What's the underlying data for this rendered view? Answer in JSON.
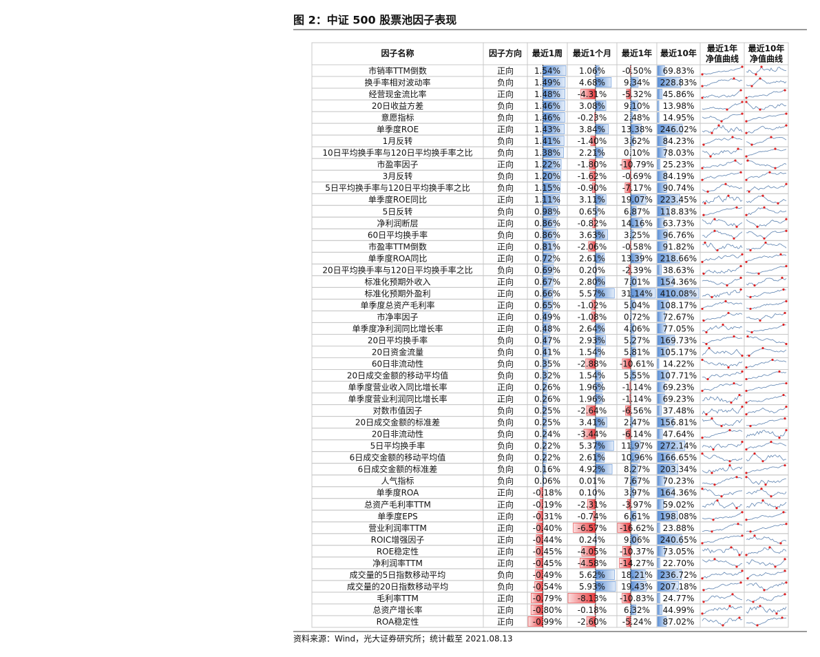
{
  "title": "图 2：中证 500 股票池因子表现",
  "source": "资料来源：Wind，光大证券研究所；统计截至 2021.08.13",
  "table": {
    "header": [
      "因子名称",
      "因子方向",
      "最近1周",
      "最近1个月",
      "最近1年",
      "最近10年",
      [
        "最近1年",
        "净值曲线"
      ],
      [
        "最近10年",
        "净值曲线"
      ]
    ],
    "rows": [
      [
        "市销率TTM倒数",
        "正向",
        "1.54%",
        "1.06%",
        "-0.50%",
        "69.83%"
      ],
      [
        "换手率相对波动率",
        "负向",
        "1.49%",
        "4.68%",
        "9.34%",
        "228.83%"
      ],
      [
        "经营现金流比率",
        "正向",
        "1.48%",
        "-4.31%",
        "-5.32%",
        "45.86%"
      ],
      [
        "20日收益方差",
        "负向",
        "1.46%",
        "3.08%",
        "9.10%",
        "13.98%"
      ],
      [
        "意愿指标",
        "负向",
        "1.46%",
        "-0.23%",
        "2.48%",
        "14.95%"
      ],
      [
        "单季度ROE",
        "正向",
        "1.43%",
        "3.84%",
        "13.38%",
        "246.02%"
      ],
      [
        "1月反转",
        "负向",
        "1.41%",
        "-1.40%",
        "3.62%",
        "84.23%"
      ],
      [
        "10日平均换手率与120日平均换手率之比",
        "负向",
        "1.38%",
        "2.21%",
        "0.10%",
        "78.03%"
      ],
      [
        "市盈率因子",
        "正向",
        "1.22%",
        "-1.80%",
        "-10.79%",
        "25.23%"
      ],
      [
        "3月反转",
        "负向",
        "1.20%",
        "-1.62%",
        "-0.69%",
        "84.19%"
      ],
      [
        "5日平均换手率与120日平均换手率之比",
        "负向",
        "1.15%",
        "-0.90%",
        "-7.17%",
        "90.74%"
      ],
      [
        "单季度ROE同比",
        "正向",
        "1.11%",
        "3.11%",
        "19.07%",
        "223.45%"
      ],
      [
        "5日反转",
        "负向",
        "0.98%",
        "0.65%",
        "6.87%",
        "118.83%"
      ],
      [
        "净利润断层",
        "正向",
        "0.86%",
        "-0.82%",
        "14.16%",
        "63.73%"
      ],
      [
        "60日平均换手率",
        "负向",
        "0.86%",
        "3.63%",
        "3.25%",
        "96.76%"
      ],
      [
        "市盈率TTM倒数",
        "正向",
        "0.81%",
        "-2.06%",
        "-0.58%",
        "91.82%"
      ],
      [
        "单季度ROA同比",
        "正向",
        "0.72%",
        "2.61%",
        "13.39%",
        "218.66%"
      ],
      [
        "20日平均换手率与120日平均换手率之比",
        "负向",
        "0.69%",
        "0.20%",
        "-2.39%",
        "38.63%"
      ],
      [
        "标准化预期外收入",
        "正向",
        "0.67%",
        "2.80%",
        "7.01%",
        "154.36%"
      ],
      [
        "标准化预期外盈利",
        "正向",
        "0.66%",
        "5.57%",
        "31.14%",
        "410.08%"
      ],
      [
        "单季度总资产毛利率",
        "正向",
        "0.65%",
        "-1.02%",
        "5.04%",
        "108.17%"
      ],
      [
        "市净率因子",
        "正向",
        "0.49%",
        "-1.08%",
        "0.72%",
        "72.67%"
      ],
      [
        "单季度净利润同比增长率",
        "正向",
        "0.48%",
        "2.64%",
        "4.06%",
        "77.05%"
      ],
      [
        "20日平均换手率",
        "负向",
        "0.47%",
        "2.93%",
        "5.27%",
        "169.73%"
      ],
      [
        "20日资金流量",
        "负向",
        "0.41%",
        "1.54%",
        "5.81%",
        "105.17%"
      ],
      [
        "60日非流动性",
        "负向",
        "0.35%",
        "-2.88%",
        "-10.61%",
        "14.22%"
      ],
      [
        "20日成交金额的移动平均值",
        "负向",
        "0.32%",
        "1.54%",
        "5.55%",
        "107.71%"
      ],
      [
        "单季度营业收入同比增长率",
        "正向",
        "0.26%",
        "1.96%",
        "-1.14%",
        "69.23%"
      ],
      [
        "单季度营业利润同比增长率",
        "正向",
        "0.26%",
        "1.96%",
        "-1.14%",
        "69.23%"
      ],
      [
        "对数市值因子",
        "负向",
        "0.25%",
        "-2.64%",
        "-6.56%",
        "37.48%"
      ],
      [
        "20日成交金额的标准差",
        "负向",
        "0.25%",
        "3.41%",
        "2.47%",
        "156.81%"
      ],
      [
        "20日非流动性",
        "负向",
        "0.24%",
        "-3.44%",
        "-6.14%",
        "47.64%"
      ],
      [
        "5日平均换手率",
        "负向",
        "0.22%",
        "5.37%",
        "11.97%",
        "272.14%"
      ],
      [
        "6日成交金额的移动平均值",
        "负向",
        "0.22%",
        "2.61%",
        "10.96%",
        "166.65%"
      ],
      [
        "6日成交金额的标准差",
        "负向",
        "0.16%",
        "4.92%",
        "8.27%",
        "203.34%"
      ],
      [
        "人气指标",
        "负向",
        "0.06%",
        "0.01%",
        "7.67%",
        "70.23%"
      ],
      [
        "单季度ROA",
        "正向",
        "-0.18%",
        "0.10%",
        "3.97%",
        "164.36%"
      ],
      [
        "总资产毛利率TTM",
        "正向",
        "-0.19%",
        "-2.31%",
        "-3.97%",
        "59.02%"
      ],
      [
        "单季度EPS",
        "正向",
        "-0.31%",
        "-0.74%",
        "6.61%",
        "198.08%"
      ],
      [
        "营业利润率TTM",
        "正向",
        "-0.40%",
        "-6.57%",
        "-16.62%",
        "23.88%"
      ],
      [
        "ROIC增强因子",
        "正向",
        "-0.44%",
        "0.24%",
        "9.06%",
        "240.65%"
      ],
      [
        "ROE稳定性",
        "正向",
        "-0.45%",
        "-4.05%",
        "-10.37%",
        "73.05%"
      ],
      [
        "净利润率TTM",
        "正向",
        "-0.45%",
        "-4.58%",
        "-14.27%",
        "22.70%"
      ],
      [
        "成交量的5日指数移动平均",
        "负向",
        "-0.49%",
        "5.62%",
        "18.21%",
        "236.72%"
      ],
      [
        "成交量的20日指数移动平均",
        "负向",
        "-0.54%",
        "5.93%",
        "19.43%",
        "207.18%"
      ],
      [
        "毛利率TTM",
        "正向",
        "-0.79%",
        "-8.13%",
        "-10.83%",
        "24.77%"
      ],
      [
        "总资产增长率",
        "正向",
        "-0.80%",
        "-0.18%",
        "6.32%",
        "44.99%"
      ],
      [
        "ROA稳定性",
        "正向",
        "-0.99%",
        "-2.60%",
        "-5.24%",
        "87.02%"
      ]
    ]
  }
}
